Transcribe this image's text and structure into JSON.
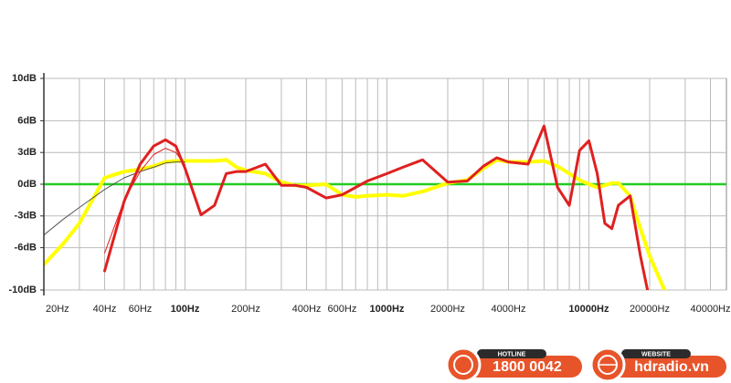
{
  "chart_data": {
    "type": "line",
    "x": [
      20,
      25,
      30,
      40,
      50,
      60,
      70,
      80,
      90,
      100,
      120,
      140,
      160,
      180,
      200,
      250,
      300,
      350,
      400,
      500,
      600,
      700,
      800,
      1000,
      1200,
      1500,
      2000,
      2500,
      3000,
      3500,
      4000,
      5000,
      6000,
      7000,
      8000,
      9000,
      10000,
      11000,
      12000,
      13000,
      14000,
      16000,
      18000,
      20000,
      25000
    ],
    "series": [
      {
        "color": "#ffff00",
        "width": 4,
        "values": [
          -7.6,
          -5.6,
          -3.7,
          0.6,
          1.2,
          1.4,
          1.7,
          2.1,
          2.2,
          2.2,
          2.2,
          2.2,
          2.3,
          1.6,
          1.3,
          1.0,
          0.2,
          -0.1,
          -0.1,
          0,
          -1.0,
          -1.2,
          -1.1,
          -1.0,
          -1.1,
          -0.7,
          0.1,
          0.4,
          1.5,
          2.3,
          2.1,
          2.1,
          2.2,
          1.7,
          1.0,
          0.4,
          0,
          -0.3,
          -0.1,
          0.1,
          0.1,
          -1.1,
          -4.2,
          -6.8,
          -11
        ]
      },
      {
        "color": "#555555",
        "width": 1,
        "values": [
          -4.8,
          -3.3,
          -2.2,
          -0.5,
          0.6,
          1.2,
          1.6,
          2.0,
          2.1,
          2.1,
          null,
          null,
          null,
          null,
          null,
          null,
          null,
          null,
          null,
          null,
          null,
          null,
          null,
          null,
          null,
          null,
          null,
          null,
          null,
          null,
          null,
          null,
          null,
          null,
          null,
          null,
          null,
          null,
          null,
          null,
          null,
          null,
          null,
          null,
          null
        ]
      },
      {
        "color": "#e02020",
        "width": 3,
        "values": [
          null,
          null,
          null,
          -8.2,
          -1.6,
          1.9,
          3.6,
          4.2,
          3.6,
          1.5,
          -2.9,
          -2.0,
          1.0,
          1.2,
          1.2,
          1.9,
          -0.1,
          -0.1,
          -0.3,
          -1.3,
          -1.0,
          -0.3,
          0.3,
          1.0,
          1.6,
          2.3,
          0.2,
          0.3,
          1.7,
          2.5,
          2.1,
          1.9,
          5.5,
          -0.3,
          -2.0,
          3.2,
          4.1,
          1.0,
          -3.7,
          -4.2,
          -2.0,
          -1.1,
          -6.8,
          -11,
          null
        ]
      },
      {
        "color": "#e02020",
        "width": 1,
        "values": [
          null,
          null,
          null,
          -6.5,
          -1.5,
          1.2,
          2.8,
          3.4,
          3.0,
          1.8,
          null,
          null,
          null,
          null,
          null,
          null,
          null,
          null,
          null,
          null,
          null,
          null,
          null,
          null,
          null,
          null,
          null,
          null,
          null,
          null,
          null,
          null,
          null,
          null,
          null,
          null,
          null,
          null,
          null,
          null,
          null,
          null,
          null,
          null,
          null
        ]
      }
    ],
    "xscale": "log",
    "xlim": [
      20,
      48000
    ],
    "xticks": [
      {
        "value": 20,
        "label": "20Hz"
      },
      {
        "value": 40,
        "label": "40Hz"
      },
      {
        "value": 60,
        "label": "60Hz"
      },
      {
        "value": 100,
        "label": "100Hz"
      },
      {
        "value": 200,
        "label": "200Hz"
      },
      {
        "value": 400,
        "label": "400Hz"
      },
      {
        "value": 600,
        "label": "600Hz"
      },
      {
        "value": 1000,
        "label": "1000Hz"
      },
      {
        "value": 2000,
        "label": "2000Hz"
      },
      {
        "value": 4000,
        "label": "4000Hz"
      },
      {
        "value": 10000,
        "label": "10000Hz"
      },
      {
        "value": 20000,
        "label": "20000Hz"
      },
      {
        "value": 40000,
        "label": "40000Hz"
      }
    ],
    "x_gridlines": [
      20,
      30,
      40,
      50,
      60,
      70,
      80,
      90,
      100,
      200,
      300,
      400,
      500,
      600,
      700,
      800,
      900,
      1000,
      2000,
      3000,
      4000,
      5000,
      6000,
      7000,
      8000,
      9000,
      10000,
      20000,
      30000,
      40000
    ],
    "ylim": [
      -10,
      10
    ],
    "yticks": [
      {
        "value": -10,
        "label": "-10dB"
      },
      {
        "value": -6,
        "label": "-6dB"
      },
      {
        "value": -3,
        "label": "-3dB"
      },
      {
        "value": 0,
        "label": "0dB"
      },
      {
        "value": 3,
        "label": "3dB"
      },
      {
        "value": 6,
        "label": "6dB"
      },
      {
        "value": 10,
        "label": "10dB"
      }
    ],
    "grid": true,
    "reference_line": {
      "value": 0,
      "color": "#22cc22"
    }
  },
  "footer": {
    "hotline_label": "HOTLINE",
    "hotline": "1800 0042",
    "website_label": "WEBSITE",
    "website": "hdradio.vn"
  }
}
